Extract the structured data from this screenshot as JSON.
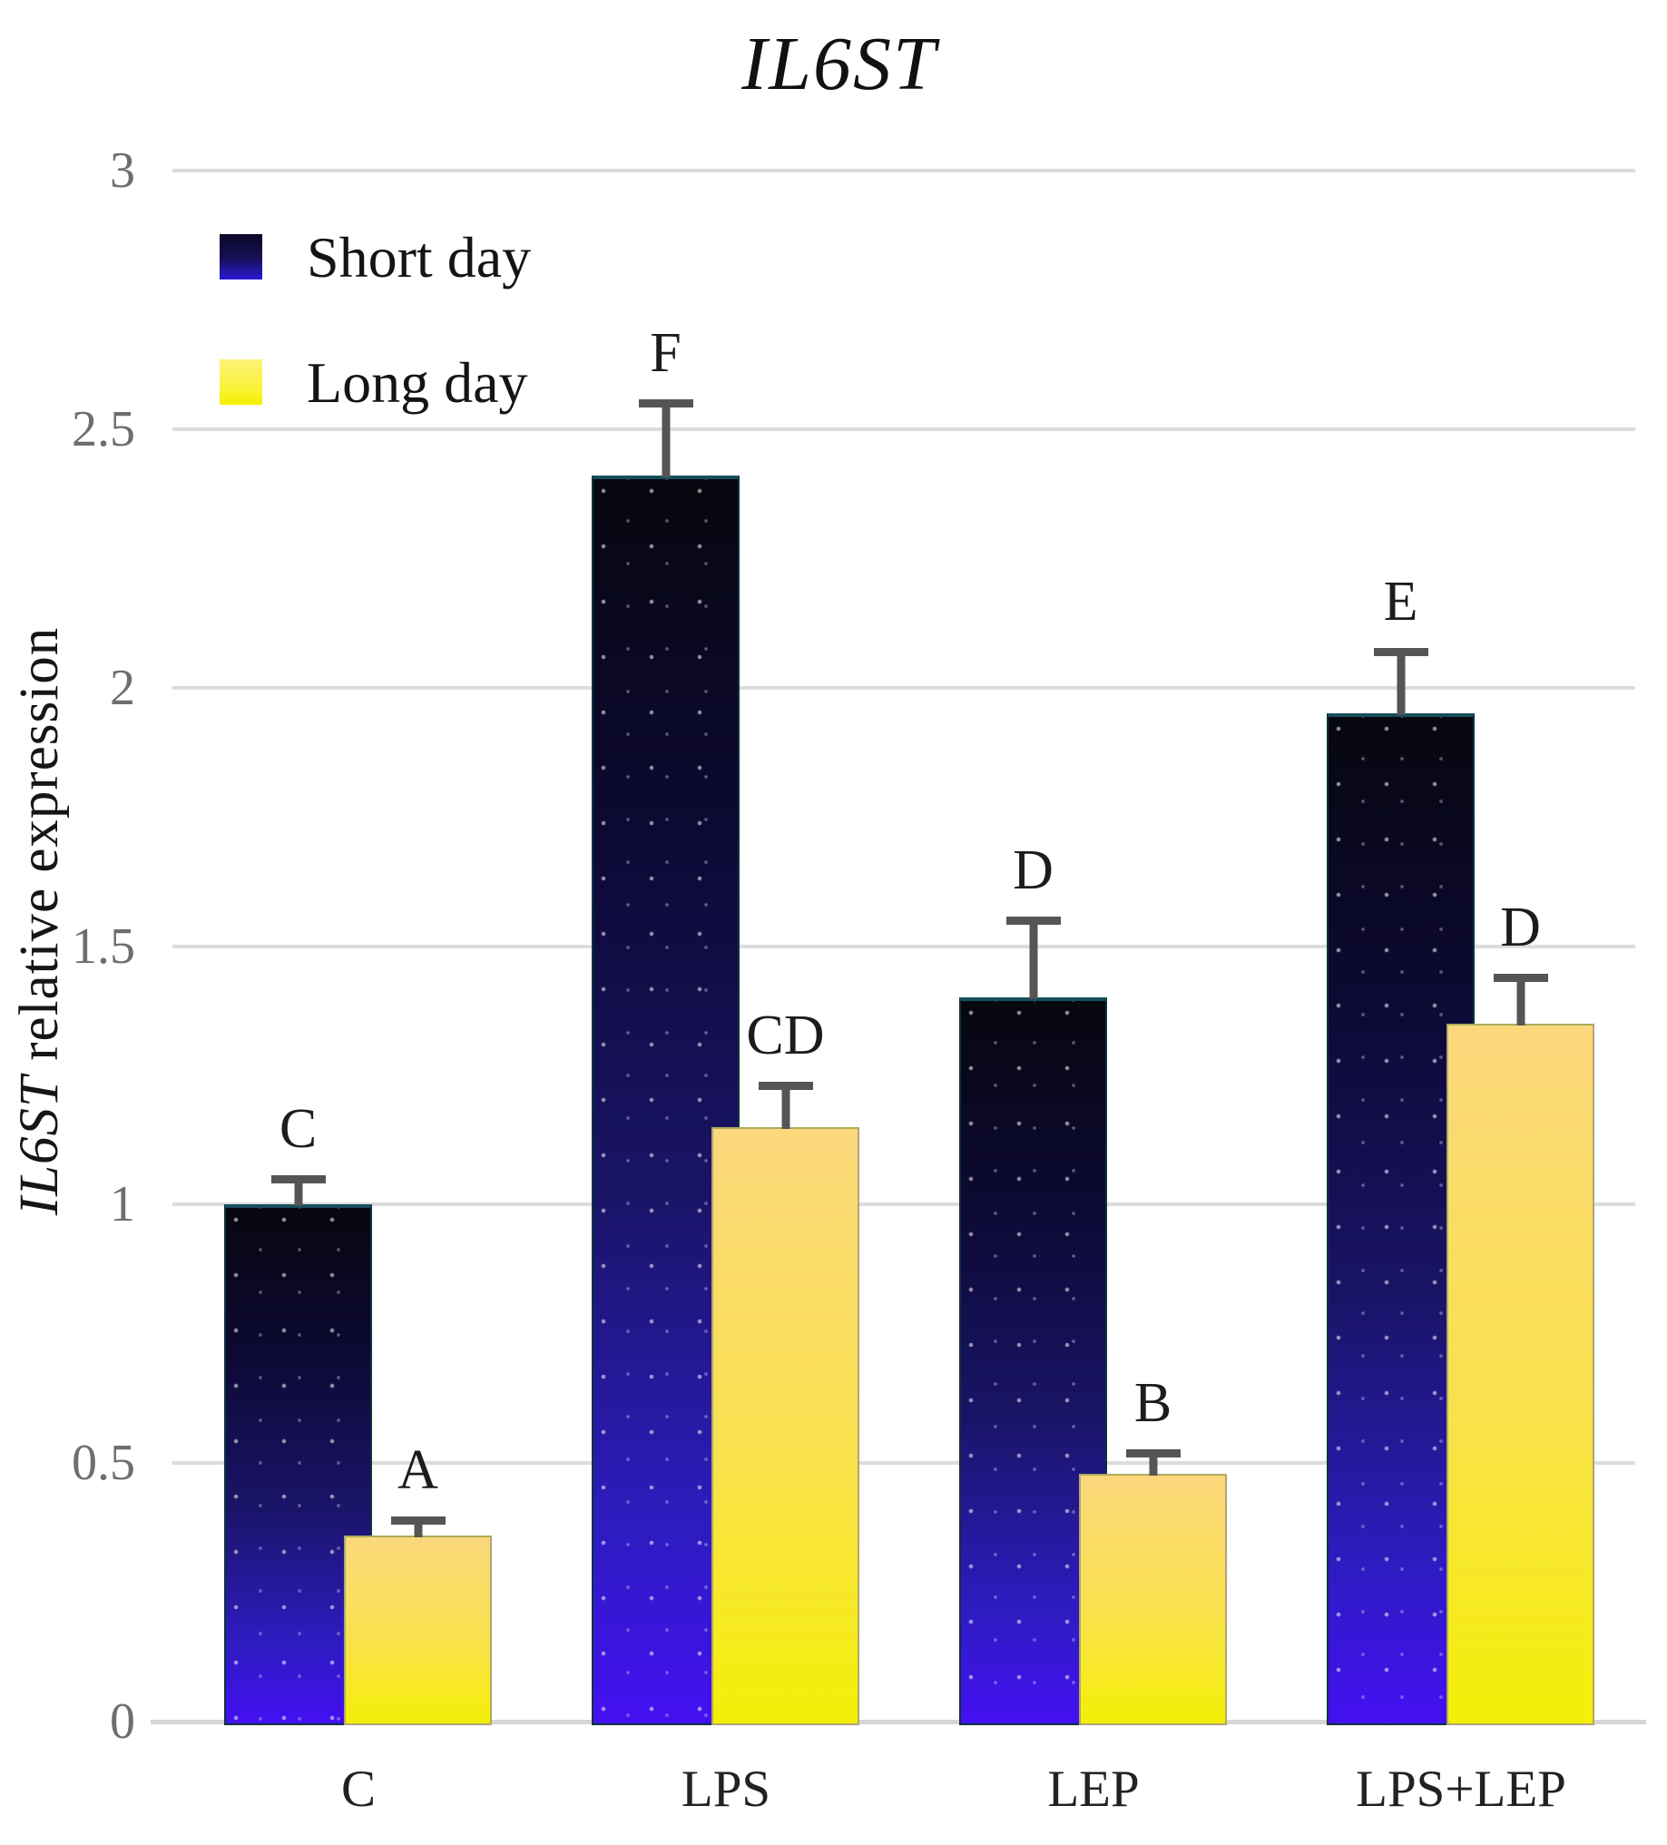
{
  "title": "IL6ST",
  "y_axis": {
    "gene": "IL6ST",
    "rest": " relative expression",
    "ticks": [
      {
        "label": "3",
        "value": 3
      },
      {
        "label": "2.5",
        "value": 2.5
      },
      {
        "label": "2",
        "value": 2
      },
      {
        "label": "1.5",
        "value": 1.5
      },
      {
        "label": "1",
        "value": 1
      },
      {
        "label": "0.5",
        "value": 0.5
      },
      {
        "label": "0",
        "value": 0
      }
    ]
  },
  "legend": {
    "items": [
      {
        "name": "Short day"
      },
      {
        "name": "Long day"
      }
    ]
  },
  "colors": {
    "gridline": "#dcdcdc",
    "axis_line": "#d6d6d6",
    "error_bar": "#555555",
    "tick_text": "#6e6e6e",
    "short_day_top": "#07070f",
    "short_day_bottom": "#4410f2",
    "long_day_top": "#fbd87c",
    "long_day_bottom": "#f4ef06"
  },
  "chart_data": {
    "type": "bar",
    "title": "IL6ST",
    "ylabel": "IL6ST relative expression",
    "xlabel": "",
    "ylim": [
      0,
      3
    ],
    "ytick_step": 0.5,
    "grid": true,
    "legend_position": "top-left",
    "categories": [
      "C",
      "LPS",
      "LEP",
      "LPS+LEP"
    ],
    "series": [
      {
        "name": "Short day",
        "values": [
          1.0,
          2.41,
          1.4,
          1.95
        ],
        "errors": [
          0.05,
          0.14,
          0.15,
          0.12
        ],
        "sig_letters": [
          "C",
          "F",
          "D",
          "E"
        ]
      },
      {
        "name": "Long day",
        "values": [
          0.36,
          1.15,
          0.48,
          1.35
        ],
        "errors": [
          0.03,
          0.08,
          0.04,
          0.09
        ],
        "sig_letters": [
          "A",
          "CD",
          "B",
          "D"
        ]
      }
    ]
  }
}
